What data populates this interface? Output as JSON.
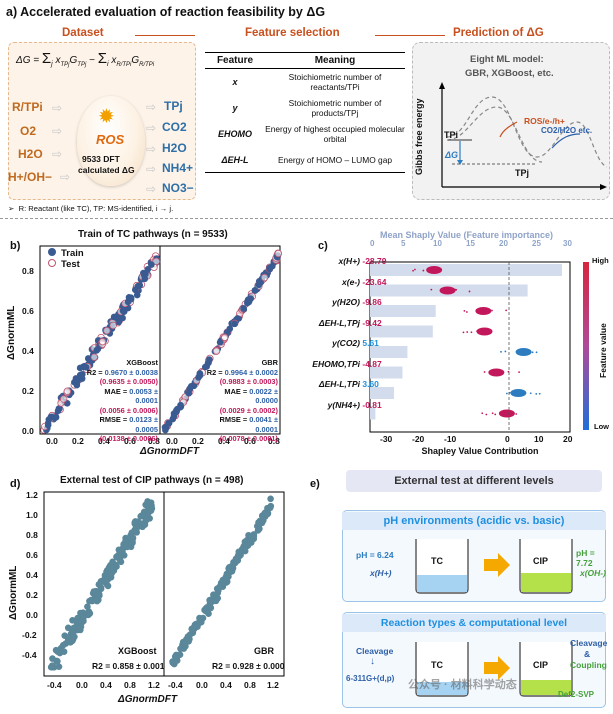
{
  "panel_a": {
    "label": "a)",
    "title": "Accelerated evaluation of reaction feasibility by ΔG",
    "dataset": {
      "heading": "Dataset",
      "equation_lhs": "ΔG =",
      "equation_term1": "Σ",
      "equation_term1_sub": "j",
      "equation_x1": "x",
      "equation_x1_sub": "TPj",
      "equation_g1": "G",
      "equation_g1_sub": "TPj",
      "equation_minus": "−",
      "equation_term2": "Σ",
      "equation_term2_sub": "i",
      "equation_x2": "x",
      "equation_x2_sub": "R/TPi",
      "equation_g2": "G",
      "equation_g2_sub": "R/TPi",
      "reactants": [
        "R/TPi",
        "O2",
        "H2O",
        "H+/OH−"
      ],
      "products": [
        "TPj",
        "CO2",
        "H2O",
        "NH4+",
        "NO3−"
      ],
      "center_label": "ROS",
      "center_count": "9533 DFT",
      "center_note": "calculated ΔG",
      "footnote": "R: Reactant (like TC), TP: MS-identified, i → j."
    },
    "feature_selection": {
      "heading": "Feature selection",
      "col_feature": "Feature",
      "col_meaning": "Meaning",
      "rows": [
        {
          "feature": "x",
          "meaning": "Stoichiometric number of reactants/TPi"
        },
        {
          "feature": "y",
          "meaning": "Stoichiometric number of products/TPj"
        },
        {
          "feature": "EHOMO",
          "meaning": "Energy of highest occupied molecular orbital"
        },
        {
          "feature": "ΔEH-L",
          "meaning": "Energy of HOMO – LUMO gap"
        }
      ]
    },
    "prediction": {
      "heading": "Prediction of ΔG",
      "model_title": "Eight ML model:",
      "model_list": "GBR, XGBoost, etc.",
      "ylabel": "Gibbs free energy",
      "label_ros": "ROS/e-/h+",
      "label_co2": "CO2/H2O etc.",
      "label_tpi": "TPi",
      "label_tpj": "TPj",
      "label_dg": "ΔG"
    }
  },
  "panel_b": {
    "label": "b)",
    "title": "Train of TC pathways (n = 9533)",
    "legend_train": "Train",
    "legend_test": "Test",
    "xlabel": "ΔGnormDFT",
    "ylabel": "ΔGnormML",
    "yticks": [
      "0.0",
      "0.2",
      "0.4",
      "0.6",
      "0.8"
    ],
    "xticks_left": [
      "0.0",
      "0.2",
      "0.4",
      "0.6",
      "0.8"
    ],
    "xticks_right": [
      "0.0",
      "0.2",
      "0.4",
      "0.6",
      "0.8"
    ],
    "models": [
      {
        "name": "XGBoost",
        "r2_label": "R2 =",
        "r2_train": "0.9670 ± 0.0038",
        "r2_test": "(0.9635 ± 0.0050)",
        "mae_label": "MAE =",
        "mae_train": "0.0053 ± 0.0001",
        "mae_test": "(0.0056 ± 0.0006)",
        "rmse_label": "RMSE =",
        "rmse_train": "0.0123 ± 0.0005",
        "rmse_test": "(0.0138 ± 0.0006)"
      },
      {
        "name": "GBR",
        "r2_label": "R2 =",
        "r2_train": "0.9964 ± 0.0002",
        "r2_test": "(0.9883 ± 0.0003)",
        "mae_label": "MAE =",
        "mae_train": "0.0022 ± 0.0000",
        "mae_test": "(0.0029 ± 0.0002)",
        "rmse_label": "RMSE =",
        "rmse_train": "0.0041 ± 0.0001",
        "rmse_test": "(0.0078 ± 0.0001)"
      }
    ]
  },
  "panel_c": {
    "label": "c)",
    "top_title": "Mean Shaply Value (Feature importance)",
    "top_ticks": [
      "0",
      "5",
      "10",
      "15",
      "20",
      "25",
      "30"
    ],
    "bottom_ticks": [
      "-30",
      "-20",
      "-10",
      "0",
      "10",
      "20"
    ],
    "xlabel": "Shapley Value Contribution",
    "colorbar_high": "High",
    "colorbar_low": "Low",
    "colorbar_label": "Feature value"
  },
  "panel_d": {
    "label": "d)",
    "title": "External test of CIP pathways (n = 498)",
    "xlabel": "ΔGnormDFT",
    "ylabel": "ΔGnormML",
    "yticks": [
      "1.2",
      "1.0",
      "0.8",
      "0.6",
      "0.4",
      "0.2",
      "0.0",
      "-0.2",
      "-0.4"
    ],
    "xticks_left": [
      "-0.4",
      "0.0",
      "0.4",
      "0.8",
      "1.2"
    ],
    "xticks_right": [
      "-0.4",
      "0.0",
      "0.4",
      "0.8",
      "1.2"
    ],
    "left_model": "XGBoost",
    "left_r2": "R2 = 0.858 ± 0.001",
    "right_model": "GBR",
    "right_r2": "R2 = 0.928 ± 0.000"
  },
  "panel_e": {
    "label": "e)",
    "header": "External test at different levels",
    "box1_title": "pH environments (acidic vs. basic)",
    "box1_ph_left": "pH = 6.24",
    "box1_x_left": "x(H+)",
    "box1_beaker_left": "TC",
    "box1_beaker_right": "CIP",
    "box1_ph_right": "pH = 7.72",
    "box1_x_right": "x(OH-)",
    "box2_title": "Reaction types & computational level",
    "box2_left_top": "Cleavage",
    "box2_left_bottom": "6-311G+(d,p)",
    "box2_beaker_left": "TC",
    "box2_beaker_right": "CIP",
    "box2_right_top": "Cleavage",
    "box2_right_amp": "&",
    "box2_right_mid": "Coupling",
    "box2_right_bottom": "Def2-SVP",
    "watermark": "公众号 · 材料科学动态"
  },
  "chart_data": [
    {
      "type": "bar",
      "title": "Mean Shaply Value (Feature importance)",
      "categories": [
        "x(H+)",
        "x(e-)",
        "y(H2O)",
        "ΔEH-L,TPj",
        "y(CO2)",
        "EHOMO,TPi",
        "ΔEH-L,TPi",
        "y(NH4+)"
      ],
      "values": [
        28.79,
        23.64,
        9.86,
        9.42,
        5.61,
        4.87,
        3.6,
        0.81
      ],
      "signed_values": [
        "-28.79",
        "-23.64",
        "-9.86",
        "-9.42",
        "5.61",
        "-4.87",
        "3.60",
        "-0.81"
      ],
      "xlabel": "Mean Shaply Value",
      "xlim": [
        0,
        30
      ]
    },
    {
      "type": "scatter",
      "title": "Train of TC pathways (n = 9533)",
      "series": [
        {
          "name": "Train"
        },
        {
          "name": "Test"
        }
      ],
      "xlabel": "ΔGnormDFT",
      "ylabel": "ΔGnormML",
      "xlim": [
        0,
        0.9
      ],
      "ylim": [
        0,
        0.95
      ]
    },
    {
      "type": "scatter",
      "title": "External test of CIP pathways (n = 498)",
      "xlabel": "ΔGnormDFT",
      "ylabel": "ΔGnormML",
      "xlim": [
        -0.6,
        1.3
      ],
      "ylim": [
        -0.55,
        1.3
      ]
    }
  ]
}
